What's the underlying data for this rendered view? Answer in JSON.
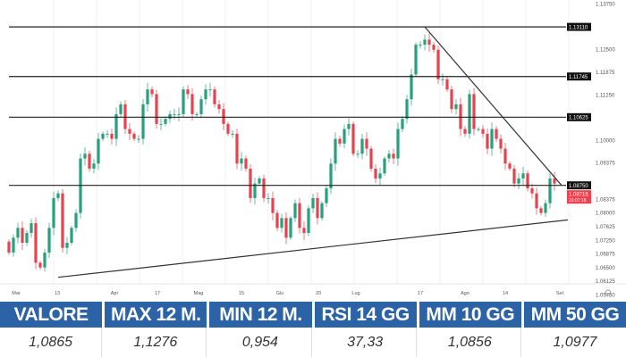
{
  "chart_data": {
    "type": "candlestick",
    "y_axis_labels": [
      "1.13750",
      "1.12500",
      "1.11875",
      "1.11250",
      "1.10000",
      "1.09375",
      "1.08375",
      "1.08000",
      "1.07625",
      "1.07250",
      "1.06875",
      "1.06500",
      "1.06125",
      "1.05750"
    ],
    "ylim": [
      1.0555,
      1.1385
    ],
    "x_tick_labels": [
      {
        "label": "Mar",
        "index": 1.6
      },
      {
        "label": "13",
        "index": 10.8
      },
      {
        "label": "Apr",
        "index": 23.6
      },
      {
        "label": "17",
        "index": 33.2
      },
      {
        "label": "Mag",
        "index": 42.4
      },
      {
        "label": "15",
        "index": 52
      },
      {
        "label": "Giu",
        "index": 60.6
      },
      {
        "label": "20",
        "index": 69.2
      },
      {
        "label": "Lug",
        "index": 77.6
      },
      {
        "label": "17",
        "index": 92
      },
      {
        "label": "Ago",
        "index": 102
      },
      {
        "label": "14",
        "index": 111
      },
      {
        "label": "Set",
        "index": 123.2
      }
    ],
    "first_open": 1.072,
    "closes": [
      1.069,
      1.0731,
      1.0758,
      1.0717,
      1.0744,
      1.0771,
      1.0662,
      1.0649,
      1.069,
      1.0758,
      1.084,
      1.0853,
      1.0703,
      1.0717,
      1.0758,
      1.0799,
      1.0949,
      1.0962,
      1.0921,
      1.0935,
      1.1003,
      1.1017,
      1.1017,
      1.1003,
      1.1071,
      1.1098,
      1.103,
      1.1017,
      1.1003,
      1.1003,
      1.1098,
      1.1139,
      1.1126,
      1.1044,
      1.1044,
      1.1058,
      1.1071,
      1.1071,
      1.1071,
      1.1139,
      1.1126,
      1.1071,
      1.1071,
      1.1112,
      1.1139,
      1.1139,
      1.1098,
      1.1085,
      1.1044,
      1.1017,
      1.1017,
      1.0935,
      1.0949,
      1.0921,
      1.084,
      1.088,
      1.0894,
      1.084,
      1.084,
      1.0799,
      1.0758,
      1.0785,
      1.0731,
      1.0785,
      1.0826,
      1.0758,
      1.0744,
      1.0812,
      1.084,
      1.0785,
      1.0826,
      1.0867,
      1.0935,
      1.1003,
      1.099,
      1.103,
      1.1044,
      1.0962,
      1.0962,
      1.1003,
      1.0976,
      1.0921,
      1.0894,
      1.0908,
      1.0949,
      1.0962,
      1.0949,
      1.103,
      1.1058,
      1.1112,
      1.118,
      1.1262,
      1.1262,
      1.1276,
      1.1262,
      1.1248,
      1.1167,
      1.1167,
      1.1139,
      1.1085,
      1.1098,
      1.103,
      1.1017,
      1.1126,
      1.103,
      1.103,
      1.1017,
      1.0976,
      1.103,
      1.1003,
      1.0976,
      1.0935,
      1.0921,
      1.088,
      1.0894,
      1.0908,
      1.0867,
      1.0853,
      1.0812,
      1.0799,
      1.0826,
      1.0894,
      1.088
    ],
    "levels": [
      {
        "value": 1.1311,
        "label": "1.13110"
      },
      {
        "value": 1.11745,
        "label": "1.11745"
      },
      {
        "value": 1.10625,
        "label": "1.10625"
      },
      {
        "value": 1.0875,
        "label": "1.08750"
      }
    ],
    "trendlines": [
      {
        "from": {
          "index": 11,
          "price": 1.0622
        },
        "to": {
          "index": 125,
          "price": 1.078
        }
      },
      {
        "from": {
          "index": 93,
          "price": 1.1311
        },
        "to": {
          "index": 123.6,
          "price": 1.0875
        }
      }
    ],
    "current_price": {
      "label": "1.08715",
      "countdown": "16:07:18"
    },
    "colors": {
      "up": "#26a17b",
      "down": "#e5434f",
      "level": "#222222",
      "grid": "#f0f0f0",
      "label_bg": "#111111",
      "price_bg": "#f0424e"
    }
  },
  "table": {
    "headers": [
      "VALORE",
      "MAX 12 M.",
      "MIN 12 M.",
      "RSI 14 GG",
      "MM 10 GG",
      "MM 50 GG"
    ],
    "values": [
      "1,0865",
      "1,1276",
      "0,954",
      "37,33",
      "1,0856",
      "1,0977"
    ],
    "header_color": "#2b63a6"
  }
}
